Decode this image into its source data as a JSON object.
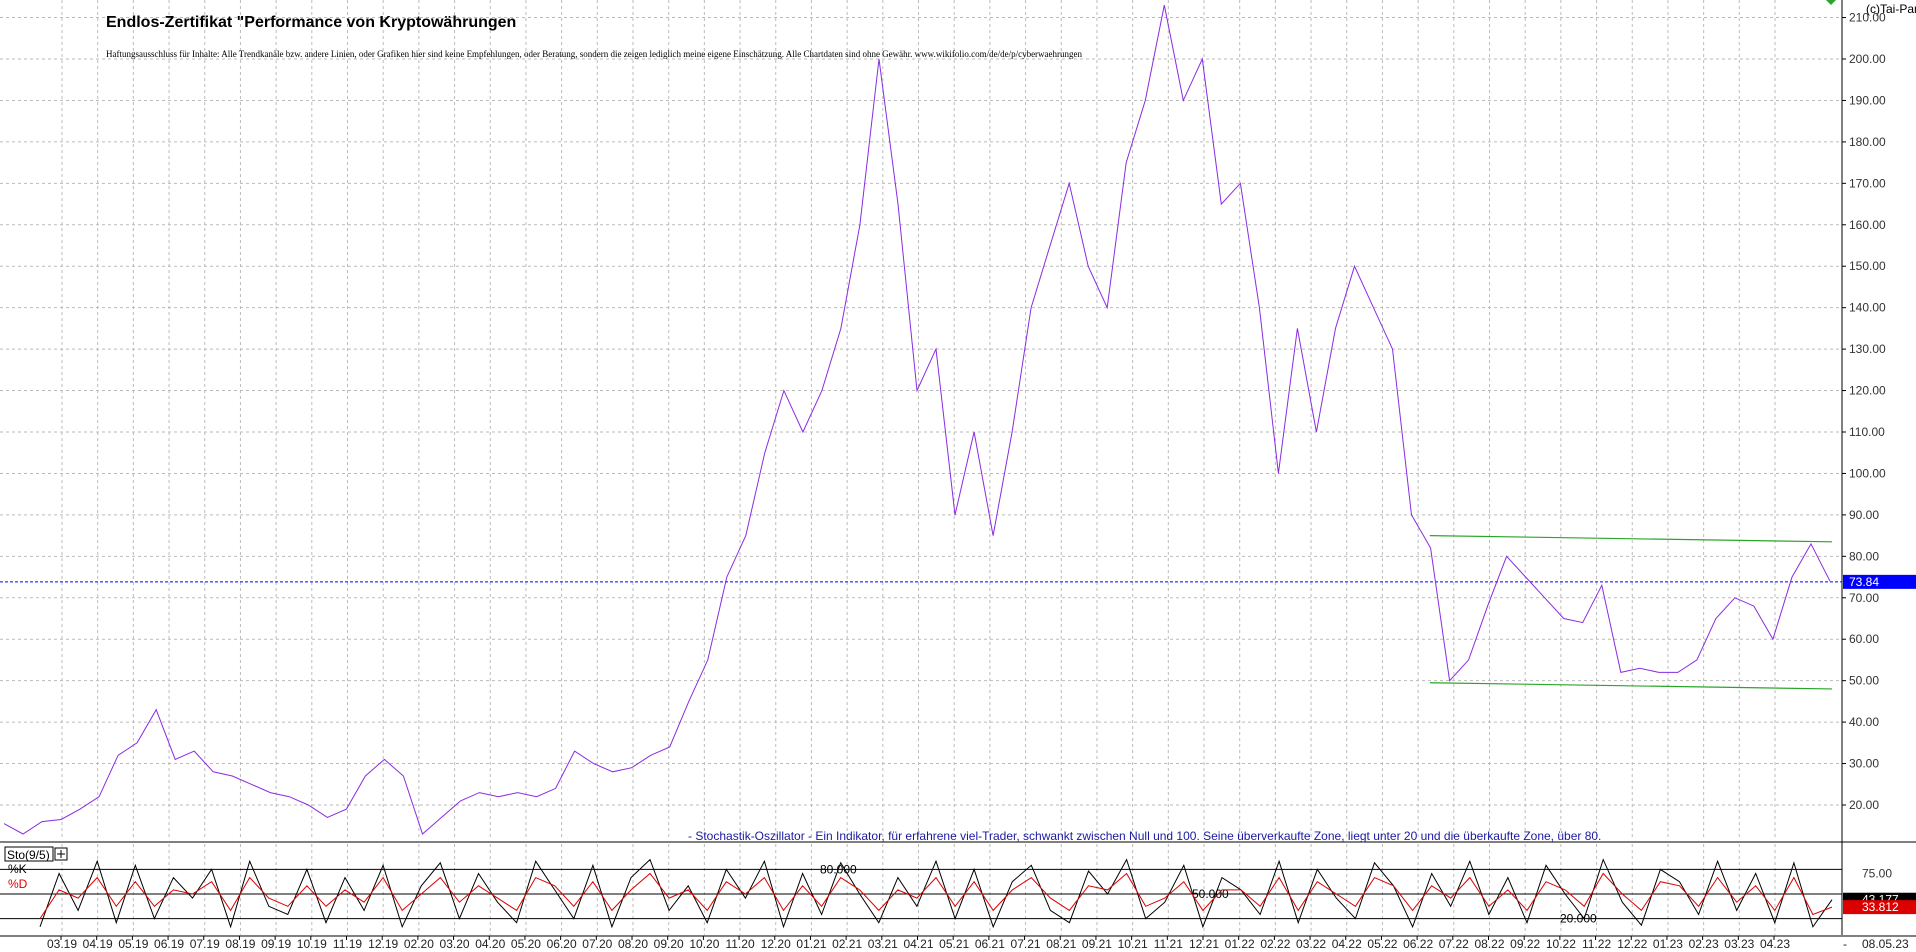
{
  "header": {
    "title": "Endlos-Zertifikat \"Performance von Kryptowährungen",
    "disclaimer": "Haftungsausschluss für Inhalte: Alle Trendkanäle bzw. andere Linien, oder Grafiken hier sind keine Empfehlungen, oder Beratung, sondern die zeigen lediglich meine eigene Einschätzung. Alle Chartdaten sind ohne Gewähr.  www.wikifolio.com/de/de/p/cyberwaehrungen",
    "copyright": "(c)Tai-Pan"
  },
  "colors": {
    "price_line": "#8a2be2",
    "channel": "#2aa52a",
    "last_price_marker": "#0000ff",
    "k_line": "#000000",
    "d_line": "#dd0000",
    "grid": "#bbbbbb"
  },
  "chart_data": [
    {
      "type": "line",
      "series": [
        {
          "values": [
            15.5,
            13,
            16,
            16.5,
            19,
            22,
            32,
            35,
            43,
            31,
            33,
            28,
            27,
            25,
            23,
            22,
            20,
            17,
            19,
            27,
            31,
            27,
            13,
            17,
            21,
            23,
            22,
            23,
            22,
            24,
            33,
            30,
            28,
            29,
            32,
            34,
            45,
            55,
            75,
            85,
            105,
            120,
            110,
            120,
            135,
            160,
            200,
            165,
            120,
            130,
            90,
            110,
            85,
            110,
            140,
            155,
            170,
            150,
            140,
            175,
            190,
            213,
            190,
            200,
            165,
            170,
            140,
            100,
            135,
            110,
            135,
            150,
            140,
            130,
            90,
            82,
            50,
            55,
            68,
            80,
            75,
            70,
            65,
            64,
            73,
            52,
            53,
            52,
            52,
            55,
            65,
            70,
            68,
            60,
            75,
            83,
            74
          ]
        }
      ],
      "ylim": [
        10,
        212
      ],
      "yticks": [
        "20.00",
        "30.00",
        "40.00",
        "50.00",
        "60.00",
        "70.00",
        "80.00",
        "90.00",
        "100.00",
        "110.00",
        "120.00",
        "130.00",
        "140.00",
        "150.00",
        "160.00",
        "170.00",
        "180.00",
        "190.00",
        "200.00",
        "210.00"
      ],
      "ytick_values": [
        20,
        30,
        40,
        50,
        60,
        70,
        80,
        90,
        100,
        110,
        120,
        130,
        140,
        150,
        160,
        170,
        180,
        190,
        200,
        210
      ],
      "last_value": 73.84,
      "last_value_label": "73.84",
      "trend_channel": {
        "upper": [
          85,
          83.5
        ],
        "lower": [
          49.5,
          48
        ]
      },
      "grid": true
    },
    {
      "type": "line",
      "name": "Sto(9/5)",
      "legend": [
        "%K",
        "%D"
      ],
      "ylim": [
        0,
        100
      ],
      "levels": [
        80,
        50,
        20
      ],
      "level_labels": [
        "80.000",
        "50.000",
        "20.000"
      ],
      "yticks": [
        "75.00"
      ],
      "ytick_values": [
        75
      ],
      "k_last_label": "43.177",
      "d_last_label": "33.812",
      "series": [
        {
          "name": "%K",
          "values": [
            10,
            75,
            30,
            90,
            15,
            85,
            20,
            70,
            45,
            80,
            10,
            90,
            35,
            25,
            80,
            15,
            70,
            30,
            85,
            10,
            60,
            88,
            20,
            75,
            40,
            15,
            90,
            55,
            20,
            85,
            10,
            70,
            92,
            30,
            60,
            15,
            80,
            45,
            90,
            10,
            75,
            25,
            88,
            50,
            15,
            70,
            35,
            90,
            20,
            80,
            10,
            65,
            85,
            30,
            15,
            78,
            50,
            92,
            20,
            40,
            85,
            10,
            70,
            55,
            25,
            90,
            15,
            80,
            45,
            20,
            88,
            60,
            10,
            75,
            35,
            90,
            25,
            70,
            15,
            85,
            50,
            20,
            92,
            40,
            12,
            80,
            65,
            25,
            90,
            30,
            75,
            15,
            88,
            10,
            43
          ]
        },
        {
          "name": "%D",
          "values": [
            20,
            55,
            45,
            70,
            35,
            65,
            35,
            55,
            50,
            65,
            30,
            70,
            45,
            35,
            60,
            35,
            55,
            40,
            70,
            30,
            50,
            70,
            40,
            60,
            45,
            30,
            70,
            60,
            35,
            65,
            30,
            55,
            75,
            45,
            55,
            30,
            65,
            50,
            70,
            30,
            60,
            35,
            70,
            55,
            30,
            55,
            45,
            70,
            35,
            65,
            30,
            55,
            70,
            45,
            30,
            60,
            55,
            75,
            35,
            45,
            65,
            30,
            55,
            55,
            35,
            70,
            30,
            65,
            50,
            35,
            70,
            60,
            30,
            60,
            45,
            70,
            35,
            55,
            30,
            65,
            55,
            35,
            75,
            50,
            30,
            65,
            60,
            35,
            70,
            40,
            60,
            30,
            70,
            25,
            34
          ]
        }
      ]
    }
  ],
  "indicator_note": "- Stochastik-Oszillator - Ein Indikator, für erfahrene viel-Trader, schwankt zwischen Null und 100. Seine überverkaufte Zone, liegt unter 20 und die überkaufte Zone, über 80.",
  "x_axis": {
    "labels": [
      "03.19",
      "04.19",
      "05.19",
      "06.19",
      "07.19",
      "08.19",
      "09.19",
      "10.19",
      "11.19",
      "12.19",
      "02.20",
      "03.20",
      "04.20",
      "05.20",
      "06.20",
      "07.20",
      "08.20",
      "09.20",
      "10.20",
      "11.20",
      "12.20",
      "01.21",
      "02.21",
      "03.21",
      "04.21",
      "05.21",
      "06.21",
      "07.21",
      "08.21",
      "09.21",
      "10.21",
      "11.21",
      "12.21",
      "01.22",
      "02.22",
      "03.22",
      "04.22",
      "05.22",
      "06.22",
      "07.22",
      "08.22",
      "09.22",
      "10.22",
      "11.22",
      "12.22",
      "01.23",
      "02.23",
      "03.23",
      "04.23"
    ],
    "last_label": "08.05.23",
    "minus_label": "-"
  }
}
